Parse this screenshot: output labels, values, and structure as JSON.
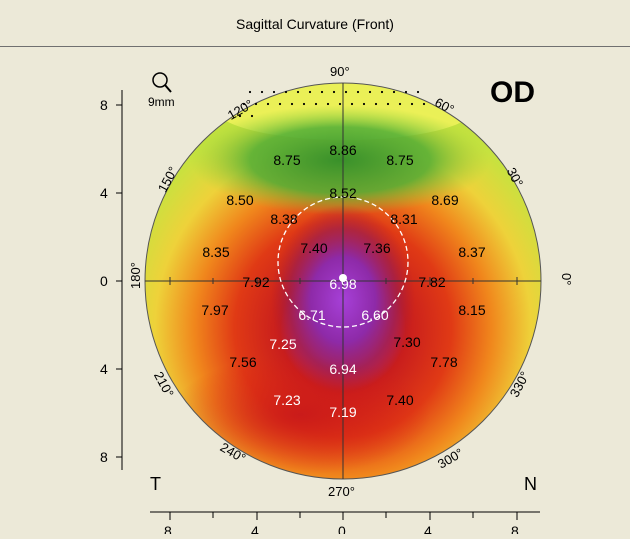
{
  "window": {
    "title": "Sagittal Curvature (Front)"
  },
  "map": {
    "eye": "OD",
    "zoom_label": "9mm",
    "zoom_icon": "magnifier-icon",
    "temporal_label": "T",
    "nasal_label": "N",
    "y_ticks": [
      "8",
      "4",
      "0",
      "4",
      "8"
    ],
    "x_ticks": [
      "8",
      "4",
      "0",
      "4",
      "8"
    ],
    "angle_labels": [
      "90°",
      "60°",
      "30°",
      "0°",
      "330°",
      "300°",
      "270°",
      "240°",
      "210°",
      "180°",
      "150°",
      "120°"
    ],
    "values": [
      "8.86",
      "8.75",
      "8.75",
      "8.52",
      "8.50",
      "8.69",
      "8.38",
      "8.31",
      "8.35",
      "7.40",
      "7.36",
      "8.37",
      "7.92",
      "6.98",
      "7.82",
      "7.97",
      "6.71",
      "6.60",
      "8.15",
      "7.25",
      "7.30",
      "7.56",
      "6.94",
      "7.78",
      "7.23",
      "7.19",
      "7.40"
    ]
  },
  "colors": {
    "steep": "#9a2ab8",
    "red": "#d81c14",
    "orange": "#f07d1a",
    "yellow": "#e8e83a",
    "green": "#3fa23a"
  }
}
